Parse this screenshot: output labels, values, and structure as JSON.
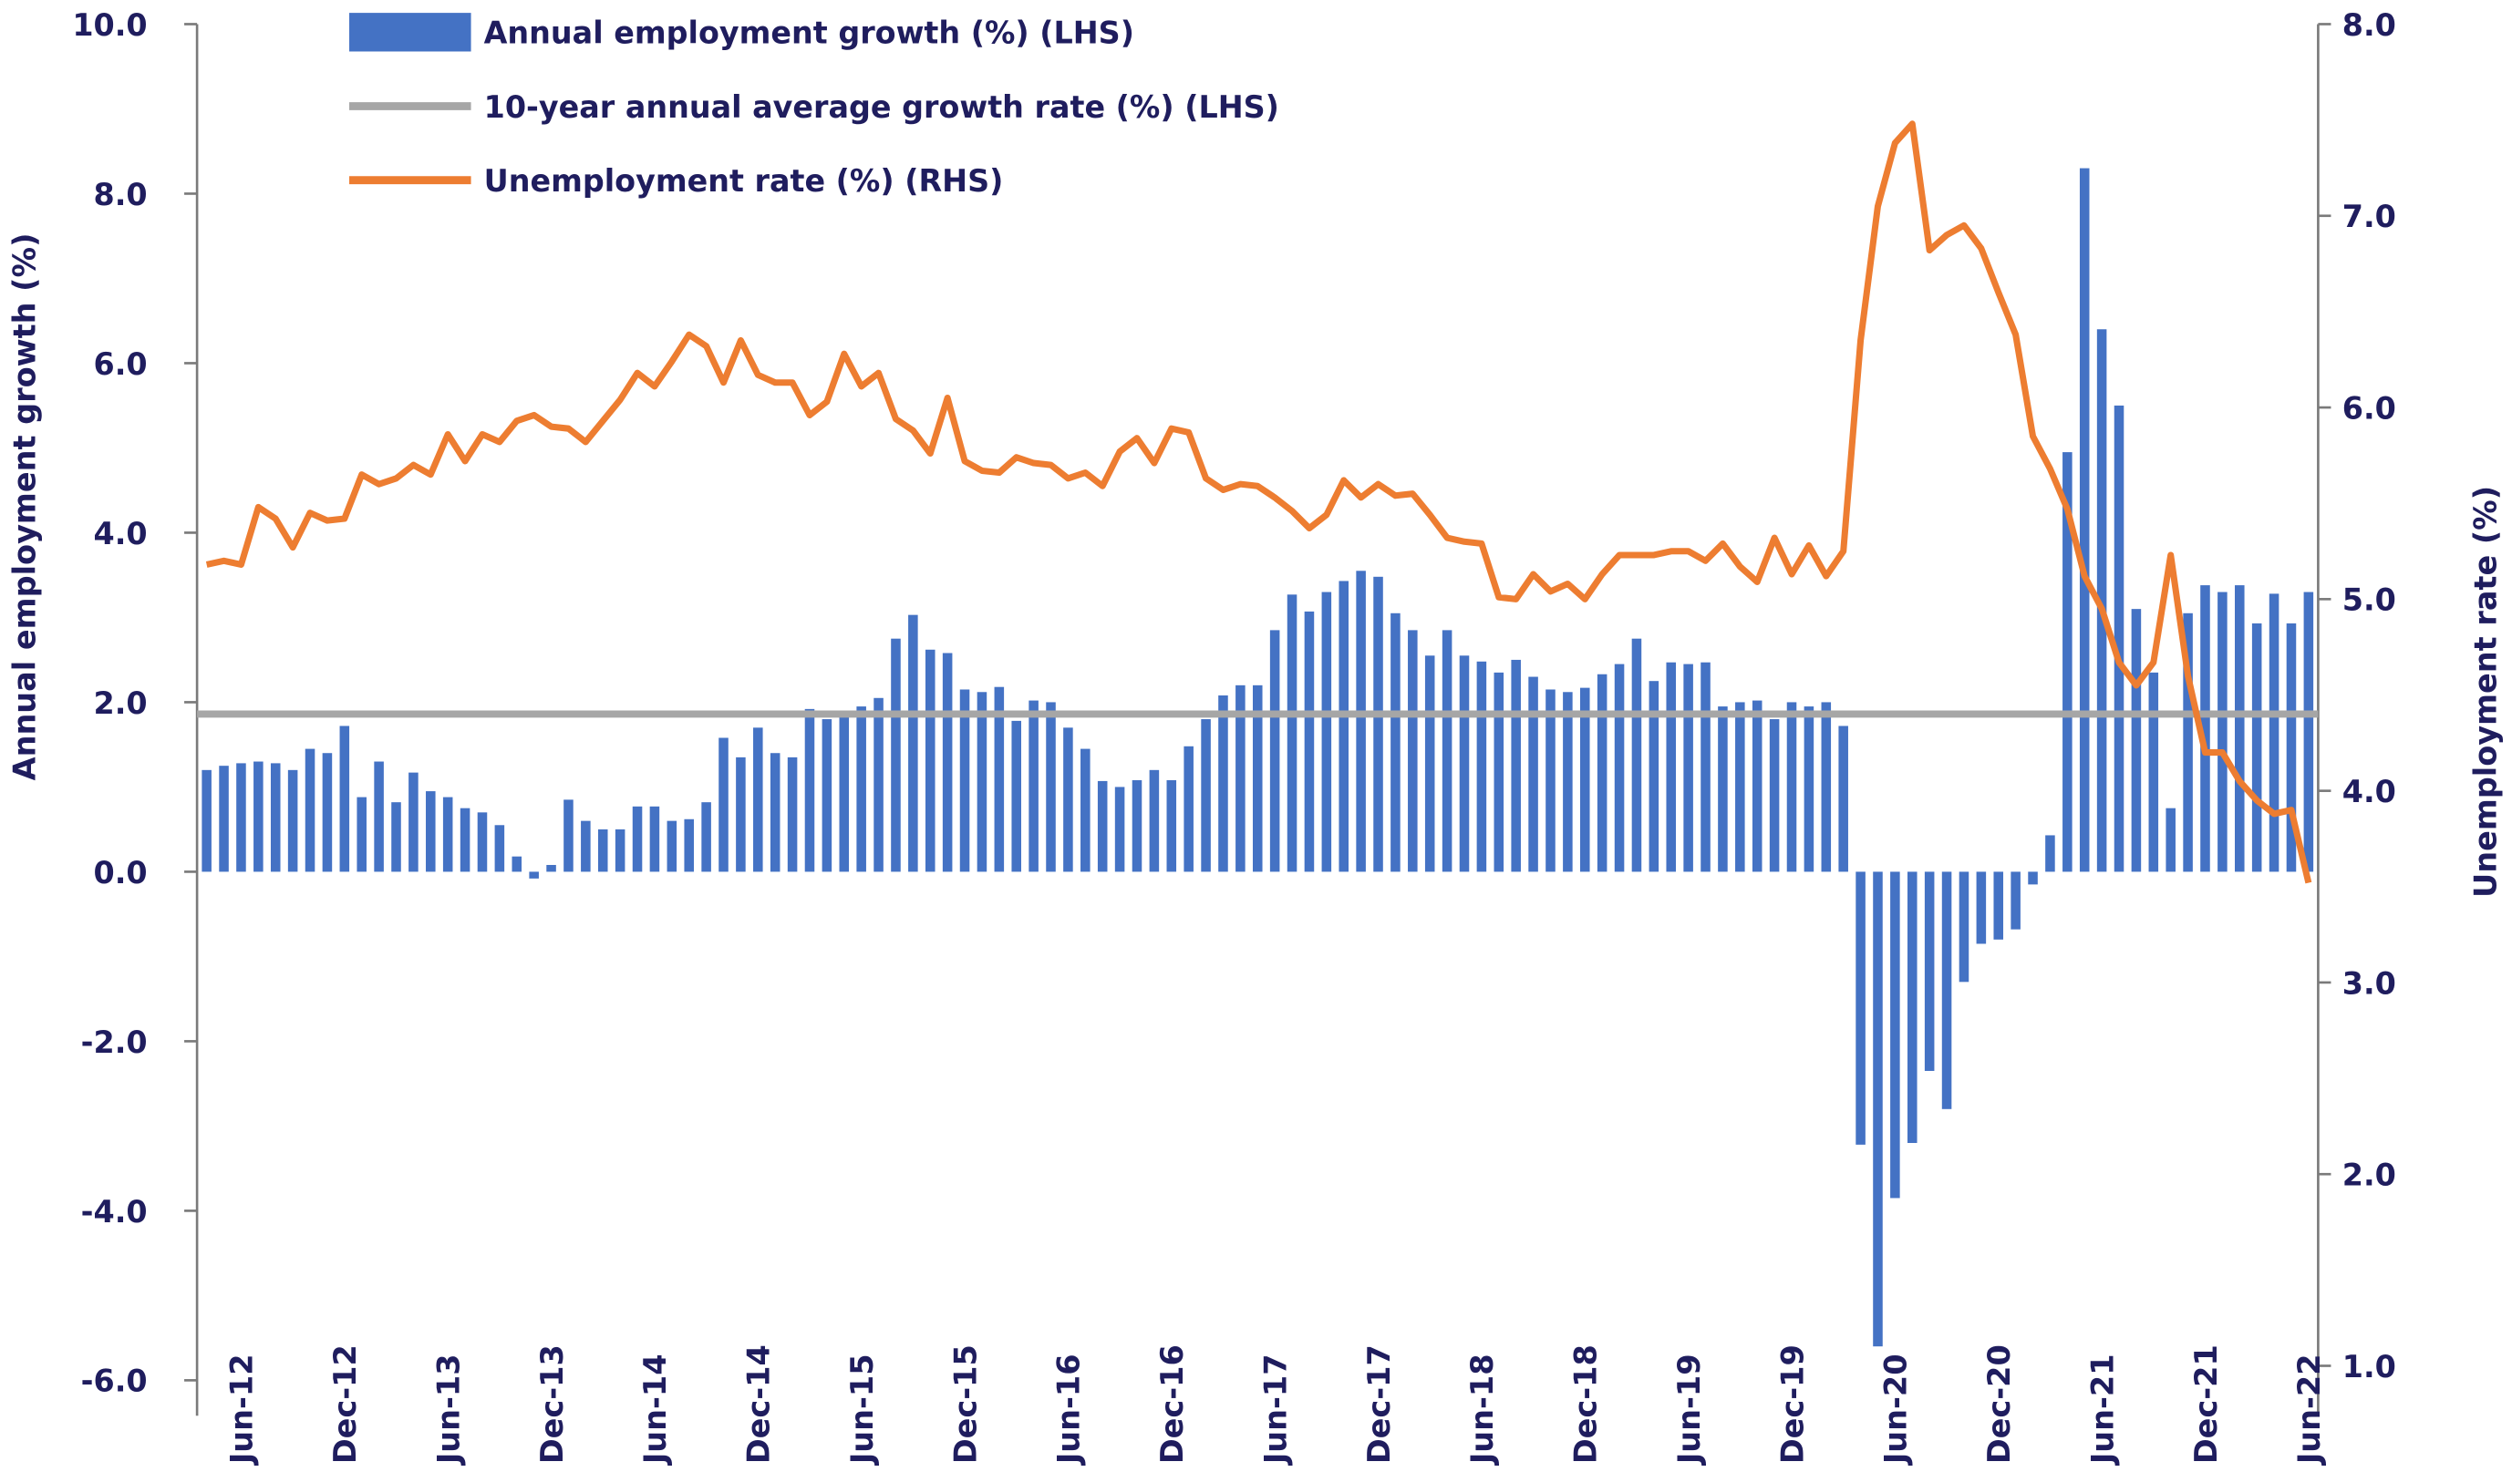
{
  "chart_data": {
    "type": "bar",
    "y_label": "Annual employment growth (%)",
    "y2_label": "Unemployment rate (%)",
    "ylim": [
      -6,
      10
    ],
    "yticks": [
      {
        "value": -6,
        "label": "-6.0"
      },
      {
        "value": -4,
        "label": "-4.0"
      },
      {
        "value": -2,
        "label": "-2.0"
      },
      {
        "value": 0,
        "label": "0.0"
      },
      {
        "value": 2,
        "label": "2.0"
      },
      {
        "value": 4,
        "label": "4.0"
      },
      {
        "value": 6,
        "label": "6.0"
      },
      {
        "value": 8,
        "label": "8.0"
      },
      {
        "value": 10,
        "label": "10.0"
      }
    ],
    "y2lim": [
      1,
      8
    ],
    "y2ticks": [
      {
        "value": 1,
        "label": "1.0"
      },
      {
        "value": 2,
        "label": "2.0"
      },
      {
        "value": 3,
        "label": "3.0"
      },
      {
        "value": 4,
        "label": "4.0"
      },
      {
        "value": 5,
        "label": "5.0"
      },
      {
        "value": 6,
        "label": "6.0"
      },
      {
        "value": 7,
        "label": "7.0"
      },
      {
        "value": 8,
        "label": "8.0"
      }
    ],
    "legend": "top-left",
    "categories": [
      null,
      null,
      "Jun-12",
      null,
      null,
      null,
      null,
      null,
      "Dec-12",
      null,
      null,
      null,
      null,
      null,
      "Jun-13",
      null,
      null,
      null,
      null,
      null,
      "Dec-13",
      null,
      null,
      null,
      null,
      null,
      "Jun-14",
      null,
      null,
      null,
      null,
      null,
      "Dec-14",
      null,
      null,
      null,
      null,
      null,
      "Jun-15",
      null,
      null,
      null,
      null,
      null,
      "Dec-15",
      null,
      null,
      null,
      null,
      null,
      "Jun-16",
      null,
      null,
      null,
      null,
      null,
      "Dec-16",
      null,
      null,
      null,
      null,
      null,
      "Jun-17",
      null,
      null,
      null,
      null,
      null,
      "Dec-17",
      null,
      null,
      null,
      null,
      null,
      "Jun-18",
      null,
      null,
      null,
      null,
      null,
      "Dec-18",
      null,
      null,
      null,
      null,
      null,
      "Jun-19",
      null,
      null,
      null,
      null,
      null,
      "Dec-19",
      null,
      null,
      null,
      null,
      null,
      "Jun-20",
      null,
      null,
      null,
      null,
      null,
      "Dec-20",
      null,
      null,
      null,
      null,
      null,
      "Jun-21",
      null,
      null,
      null,
      null,
      null,
      "Dec-21",
      null,
      null,
      null,
      null,
      null,
      "Jun-22"
    ],
    "series": [
      {
        "name": "Annual employment growth (%) (LHS)",
        "type": "bar",
        "color": "#4472c4",
        "values": [
          1.2,
          1.25,
          1.28,
          1.3,
          1.28,
          1.2,
          1.45,
          1.4,
          1.72,
          0.88,
          1.3,
          0.82,
          1.17,
          0.95,
          0.88,
          0.75,
          0.7,
          0.55,
          0.18,
          -0.08,
          0.08,
          0.85,
          0.6,
          0.5,
          0.5,
          0.77,
          0.77,
          0.6,
          0.62,
          0.82,
          1.58,
          1.35,
          1.7,
          1.4,
          1.35,
          1.92,
          1.8,
          1.88,
          1.95,
          2.05,
          2.75,
          3.03,
          2.62,
          2.58,
          2.15,
          2.12,
          2.18,
          1.78,
          2.02,
          2.0,
          1.7,
          1.45,
          1.07,
          1.0,
          1.08,
          1.2,
          1.08,
          1.48,
          1.8,
          2.08,
          2.2,
          2.2,
          2.85,
          3.27,
          3.07,
          3.3,
          3.43,
          3.55,
          3.48,
          3.05,
          2.85,
          2.55,
          2.85,
          2.55,
          2.48,
          2.35,
          2.5,
          2.3,
          2.15,
          2.12,
          2.17,
          2.33,
          2.45,
          2.75,
          2.25,
          2.47,
          2.45,
          2.47,
          1.95,
          2.0,
          2.02,
          1.8,
          2.0,
          1.95,
          2.0,
          1.72,
          -3.22,
          -5.6,
          -3.85,
          -3.2,
          -2.35,
          -2.8,
          -1.3,
          -0.85,
          -0.8,
          -0.68,
          -0.15,
          0.43,
          4.95,
          8.3,
          6.4,
          5.5,
          3.1,
          2.35,
          0.75,
          3.05,
          3.38,
          3.3,
          3.38,
          2.93,
          3.28,
          2.93,
          3.3
        ]
      },
      {
        "name": "10-year annual average growth rate (%) (LHS)",
        "type": "hline",
        "color": "#a6a6a6",
        "value": 1.86
      },
      {
        "name": "Unemployment rate (%) (RHS)",
        "type": "line",
        "axis": "y2",
        "color": "#ed7d31",
        "values": [
          5.18,
          5.2,
          5.18,
          5.48,
          5.42,
          5.27,
          5.45,
          5.41,
          5.42,
          5.65,
          5.6,
          5.63,
          5.7,
          5.65,
          5.86,
          5.72,
          5.86,
          5.82,
          5.93,
          5.96,
          5.9,
          5.89,
          5.82,
          5.93,
          6.04,
          6.18,
          6.11,
          6.24,
          6.38,
          6.32,
          6.13,
          6.35,
          6.17,
          6.13,
          6.13,
          5.96,
          6.03,
          6.28,
          6.11,
          6.18,
          5.94,
          5.88,
          5.76,
          6.05,
          5.72,
          5.67,
          5.66,
          5.74,
          5.71,
          5.7,
          5.63,
          5.66,
          5.59,
          5.77,
          5.84,
          5.71,
          5.89,
          5.87,
          5.63,
          5.57,
          5.6,
          5.59,
          5.53,
          5.46,
          5.37,
          5.44,
          5.62,
          5.53,
          5.6,
          5.54,
          5.55,
          5.44,
          5.32,
          5.3,
          5.29,
          5.01,
          5.0,
          5.13,
          5.04,
          5.08,
          5.0,
          5.13,
          5.23,
          5.23,
          5.23,
          5.25,
          5.25,
          5.2,
          5.29,
          5.17,
          5.09,
          5.32,
          5.13,
          5.28,
          5.12,
          5.25,
          6.35,
          7.05,
          7.38,
          7.48,
          6.82,
          6.9,
          6.95,
          6.83,
          6.6,
          6.38,
          5.85,
          5.68,
          5.47,
          5.12,
          4.95,
          4.67,
          4.55,
          4.67,
          5.23,
          4.6,
          4.2,
          4.2,
          4.05,
          3.95,
          3.88,
          3.9,
          3.52
        ]
      }
    ]
  }
}
